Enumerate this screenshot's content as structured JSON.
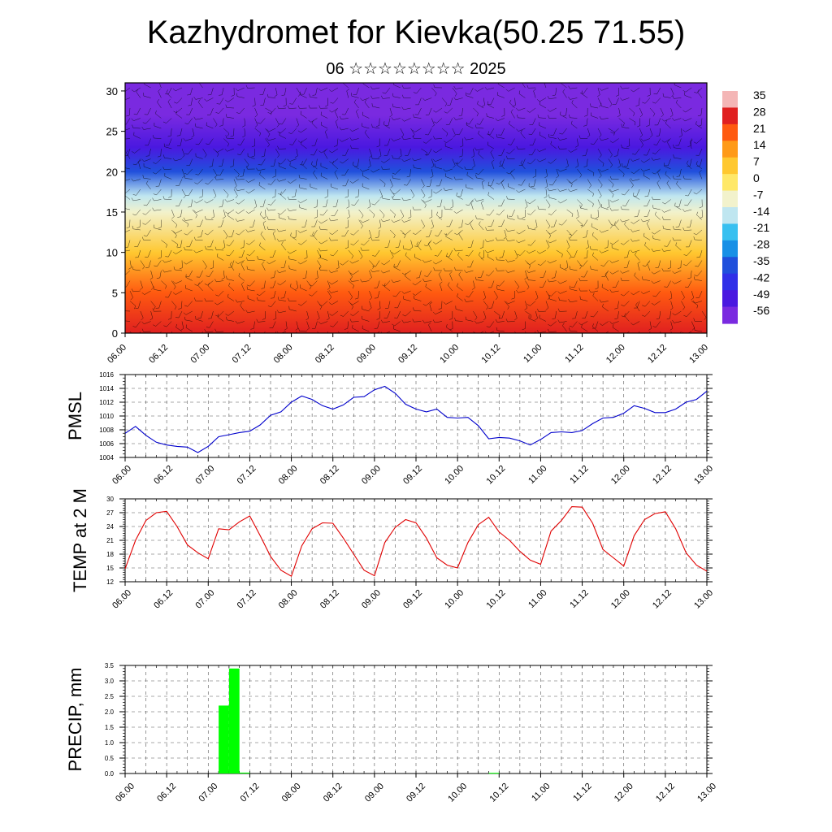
{
  "header": {
    "title": "Kazhydromet for Kievka(50.25 71.55)",
    "subtitle": "06 ☆☆☆☆☆☆☆☆ 2025"
  },
  "time_ticks": [
    "06.00",
    "06.12",
    "07.00",
    "07.12",
    "08.00",
    "08.12",
    "09.00",
    "09.12",
    "10.00",
    "10.12",
    "11.00",
    "11.12",
    "12.00",
    "12.12",
    "13.00"
  ],
  "chart_data": [
    {
      "type": "heatmap",
      "name": "upper-air-temperature-cross-section",
      "x_ticks": [
        "06.00",
        "06.12",
        "07.00",
        "07.12",
        "08.00",
        "08.12",
        "09.00",
        "09.12",
        "10.00",
        "10.12",
        "11.00",
        "11.12",
        "12.00",
        "12.12",
        "13.00"
      ],
      "y_ticks": [
        0,
        5,
        10,
        15,
        20,
        25,
        30
      ],
      "ylim": [
        0,
        31
      ],
      "colorbar_labels": [
        "35",
        "28",
        "21",
        "14",
        "7",
        "0",
        "-7",
        "-14",
        "-21",
        "-28",
        "-35",
        "-42",
        "-49",
        "-56"
      ],
      "colorbar_colors": [
        "#f4b6b6",
        "#e02020",
        "#ff5a10",
        "#ff9a18",
        "#ffc830",
        "#ffe868",
        "#f2f2cc",
        "#bfe6f0",
        "#38c0f0",
        "#1890e6",
        "#2050dc",
        "#3030e8",
        "#4a18e0",
        "#7a2ae0"
      ],
      "level_temperatures": [
        [
          0,
          28
        ],
        [
          5,
          21
        ],
        [
          10,
          7
        ],
        [
          15,
          -7
        ],
        [
          17,
          -14
        ],
        [
          20,
          -35
        ],
        [
          23,
          -49
        ],
        [
          27,
          -56
        ],
        [
          31,
          -56
        ]
      ],
      "overlay": "wind barbs"
    },
    {
      "type": "line",
      "name": "pmsl",
      "ylabel": "PMSL",
      "ylim": [
        1004,
        1016
      ],
      "y_ticks": [
        1004,
        1006,
        1008,
        1010,
        1012,
        1014,
        1016
      ],
      "x_ticks": [
        "06.00",
        "06.12",
        "07.00",
        "07.12",
        "08.00",
        "08.12",
        "09.00",
        "09.12",
        "10.00",
        "10.12",
        "11.00",
        "11.12",
        "12.00",
        "12.12",
        "13.00"
      ],
      "xlim": [
        0,
        168
      ],
      "color": "#0000cc",
      "x": [
        0,
        3,
        6,
        9,
        12,
        15,
        18,
        21,
        24,
        27,
        30,
        33,
        36,
        39,
        42,
        45,
        48,
        51,
        54,
        57,
        60,
        63,
        66,
        69,
        72,
        75,
        78,
        81,
        84,
        87,
        90,
        93,
        96,
        99,
        102,
        105,
        108,
        111,
        114,
        117,
        120,
        123,
        126,
        129,
        132,
        135,
        138,
        141,
        144,
        147,
        150,
        153,
        156,
        159,
        162,
        165,
        168
      ],
      "values": [
        1007.5,
        1008.5,
        1007.2,
        1006.2,
        1005.8,
        1005.6,
        1005.5,
        1004.7,
        1005.6,
        1007.0,
        1007.3,
        1007.6,
        1007.8,
        1008.7,
        1010.1,
        1010.6,
        1012.0,
        1012.9,
        1012.4,
        1011.5,
        1011.0,
        1011.6,
        1012.7,
        1012.8,
        1013.8,
        1014.3,
        1013.3,
        1011.7,
        1011.0,
        1010.6,
        1011.0,
        1009.8,
        1009.7,
        1009.8,
        1008.6,
        1006.7,
        1006.9,
        1006.8,
        1006.4,
        1005.8,
        1006.6,
        1007.6,
        1007.7,
        1007.6,
        1007.9,
        1008.9,
        1009.7,
        1009.8,
        1010.4,
        1011.5,
        1011.1,
        1010.5,
        1010.5,
        1011.0,
        1012.0,
        1012.4,
        1013.6
      ]
    },
    {
      "type": "line",
      "name": "temp-2m",
      "ylabel": "TEMP at 2 M",
      "ylim": [
        12,
        30
      ],
      "y_ticks": [
        12,
        15,
        18,
        21,
        24,
        27,
        30
      ],
      "x_ticks": [
        "06.00",
        "06.12",
        "07.00",
        "07.12",
        "08.00",
        "08.12",
        "09.00",
        "09.12",
        "10.00",
        "10.12",
        "11.00",
        "11.12",
        "12.00",
        "12.12",
        "13.00"
      ],
      "xlim": [
        0,
        168
      ],
      "color": "#e00000",
      "x": [
        0,
        3,
        6,
        9,
        12,
        15,
        18,
        21,
        24,
        27,
        30,
        33,
        36,
        39,
        42,
        45,
        48,
        51,
        54,
        57,
        60,
        63,
        66,
        69,
        72,
        75,
        78,
        81,
        84,
        87,
        90,
        93,
        96,
        99,
        102,
        105,
        108,
        111,
        114,
        117,
        120,
        123,
        126,
        129,
        132,
        135,
        138,
        141,
        144,
        147,
        150,
        153,
        156,
        159,
        162,
        165,
        168
      ],
      "values": [
        14.8,
        21.0,
        25.3,
        27.0,
        27.3,
        24.0,
        20.0,
        18.3,
        17.0,
        23.5,
        23.3,
        25.0,
        26.3,
        22.0,
        17.5,
        14.5,
        13.2,
        19.8,
        23.5,
        24.8,
        24.7,
        21.5,
        18.0,
        14.5,
        13.3,
        20.5,
        23.8,
        25.5,
        24.8,
        21.5,
        17.2,
        15.6,
        15.0,
        20.5,
        24.4,
        26.0,
        22.8,
        21.0,
        18.6,
        16.7,
        15.8,
        23.0,
        25.3,
        28.3,
        28.2,
        24.7,
        19.0,
        17.2,
        15.4,
        22.0,
        25.5,
        26.8,
        27.2,
        23.5,
        18.3,
        15.6,
        14.3
      ]
    },
    {
      "type": "bar",
      "name": "precipitation",
      "ylabel": "PRECIP, mm",
      "ylim": [
        0,
        3.5
      ],
      "y_ticks": [
        "0.0",
        "0.5",
        "1.0",
        "1.5",
        "2.0",
        "2.5",
        "3.0",
        "3.5"
      ],
      "x_ticks": [
        "06.00",
        "06.12",
        "07.00",
        "07.12",
        "08.00",
        "08.12",
        "09.00",
        "09.12",
        "10.00",
        "10.12",
        "11.00",
        "11.12",
        "12.00",
        "12.12",
        "13.00"
      ],
      "xlim": [
        0,
        168
      ],
      "bar_width_hours": 3,
      "color": "#00ff00",
      "x": [
        28.5,
        31.5,
        34.5,
        106.5
      ],
      "values": [
        2.2,
        3.4,
        0.03,
        0.02
      ]
    }
  ]
}
